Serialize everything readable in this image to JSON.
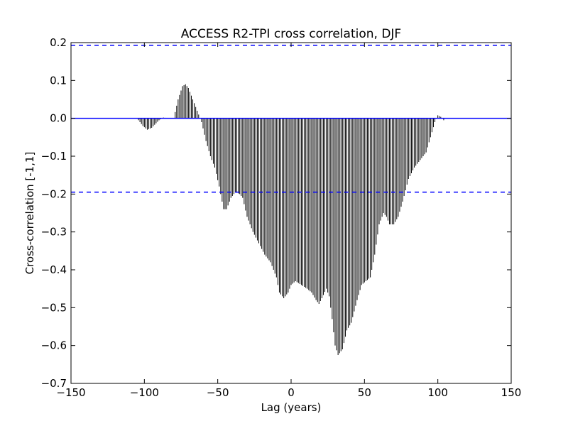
{
  "chart_data": {
    "type": "bar",
    "title": "ACCESS R2-TPI cross correlation, DJF",
    "xlabel": "Lag (years)",
    "ylabel": "Cross-correlation [-1,1]",
    "xlim": [
      -150,
      150
    ],
    "ylim": [
      -0.7,
      0.2
    ],
    "x_ticks": [
      -150,
      -100,
      -50,
      0,
      50,
      100,
      150
    ],
    "x_tick_labels": [
      "−150",
      "−100",
      "−50",
      "0",
      "50",
      "100",
      "150"
    ],
    "y_ticks": [
      0.2,
      0.1,
      0.0,
      -0.1,
      -0.2,
      -0.3,
      -0.4,
      -0.5,
      -0.6,
      -0.7
    ],
    "y_tick_labels": [
      "0.2",
      "0.1",
      "0.0",
      "−0.1",
      "−0.2",
      "−0.3",
      "−0.4",
      "−0.5",
      "−0.6",
      "−0.7"
    ],
    "grid": false,
    "lag_range": [
      -105,
      105
    ],
    "zero_line": 0.0,
    "confidence_upper": 0.193,
    "confidence_lower": -0.195,
    "curve_knots": [
      [
        -105,
        0.0
      ],
      [
        -101,
        -0.02
      ],
      [
        -98,
        -0.03
      ],
      [
        -95,
        -0.025
      ],
      [
        -90,
        -0.005
      ],
      [
        -87,
        0.002
      ],
      [
        -84,
        0.0
      ],
      [
        -80,
        0.0
      ],
      [
        -77,
        0.05
      ],
      [
        -74,
        0.085
      ],
      [
        -72,
        0.09
      ],
      [
        -70,
        0.08
      ],
      [
        -67,
        0.05
      ],
      [
        -64,
        0.02
      ],
      [
        -61,
        -0.01
      ],
      [
        -58,
        -0.06
      ],
      [
        -55,
        -0.1
      ],
      [
        -52,
        -0.13
      ],
      [
        -49,
        -0.18
      ],
      [
        -46,
        -0.24
      ],
      [
        -44,
        -0.24
      ],
      [
        -41,
        -0.21
      ],
      [
        -38,
        -0.195
      ],
      [
        -35,
        -0.2
      ],
      [
        -33,
        -0.21
      ],
      [
        -30,
        -0.26
      ],
      [
        -26,
        -0.3
      ],
      [
        -22,
        -0.33
      ],
      [
        -18,
        -0.36
      ],
      [
        -14,
        -0.38
      ],
      [
        -10,
        -0.42
      ],
      [
        -8,
        -0.46
      ],
      [
        -5,
        -0.475
      ],
      [
        -2,
        -0.46
      ],
      [
        0,
        -0.44
      ],
      [
        3,
        -0.43
      ],
      [
        7,
        -0.44
      ],
      [
        11,
        -0.45
      ],
      [
        14,
        -0.46
      ],
      [
        17,
        -0.48
      ],
      [
        19,
        -0.49
      ],
      [
        21,
        -0.475
      ],
      [
        24,
        -0.45
      ],
      [
        26,
        -0.47
      ],
      [
        28,
        -0.53
      ],
      [
        30,
        -0.6
      ],
      [
        32,
        -0.625
      ],
      [
        35,
        -0.61
      ],
      [
        38,
        -0.56
      ],
      [
        41,
        -0.54
      ],
      [
        45,
        -0.48
      ],
      [
        48,
        -0.44
      ],
      [
        51,
        -0.43
      ],
      [
        54,
        -0.42
      ],
      [
        57,
        -0.36
      ],
      [
        60,
        -0.28
      ],
      [
        63,
        -0.25
      ],
      [
        65,
        -0.26
      ],
      [
        67,
        -0.28
      ],
      [
        70,
        -0.28
      ],
      [
        73,
        -0.26
      ],
      [
        76,
        -0.22
      ],
      [
        80,
        -0.16
      ],
      [
        84,
        -0.13
      ],
      [
        88,
        -0.11
      ],
      [
        92,
        -0.09
      ],
      [
        95,
        -0.05
      ],
      [
        98,
        -0.01
      ],
      [
        100,
        0.008
      ],
      [
        102,
        0.004
      ],
      [
        104,
        -0.005
      ],
      [
        105,
        0.0
      ]
    ]
  }
}
